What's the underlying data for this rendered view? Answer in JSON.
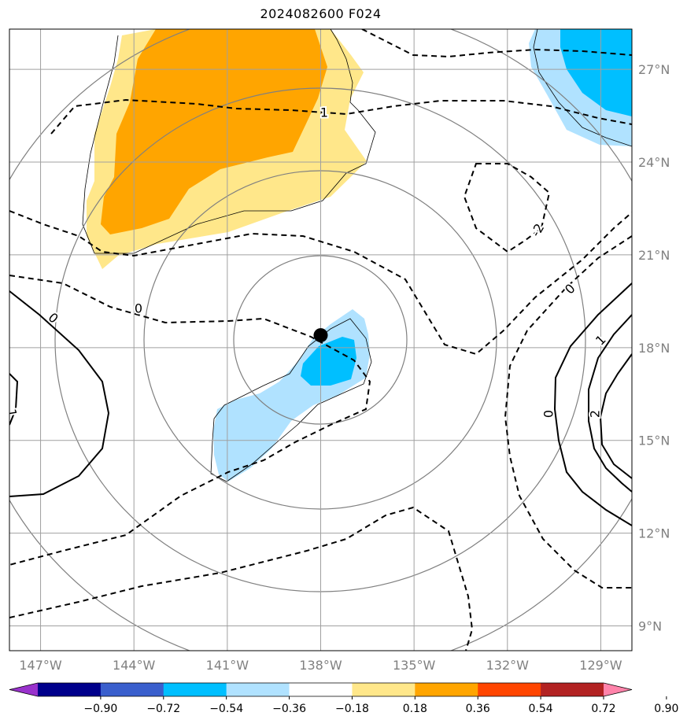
{
  "title": "2024082600 F024",
  "map": {
    "lon_labels": [
      "147°W",
      "144°W",
      "141°W",
      "138°W",
      "135°W",
      "132°W",
      "129°W"
    ],
    "lat_labels": [
      "27°N",
      "24°N",
      "21°N",
      "18°N",
      "15°N",
      "12°N",
      "9°N"
    ],
    "lon_range": [
      -148,
      -128
    ],
    "lat_range": [
      8.2,
      28.3
    ],
    "storm_center": {
      "lon": -138.0,
      "lat": 18.4
    },
    "dashed_contour_labels": [
      "1",
      "0",
      "-2",
      "0"
    ],
    "solid_contour_labels": [
      "0",
      "1",
      "0",
      "2",
      "1"
    ]
  },
  "colorbar": {
    "ticks": [
      "−0.90",
      "−0.72",
      "−0.54",
      "−0.36",
      "−0.18",
      "0.18",
      "0.36",
      "0.54",
      "0.72",
      "0.90"
    ],
    "colors": [
      "#9932cc",
      "#00008b",
      "#3a5fcd",
      "#00bfff",
      "#b0e2ff",
      "#ffffff",
      "#ffe78a",
      "#ffa500",
      "#ff4500",
      "#b22222",
      "#ff83aa"
    ]
  }
}
